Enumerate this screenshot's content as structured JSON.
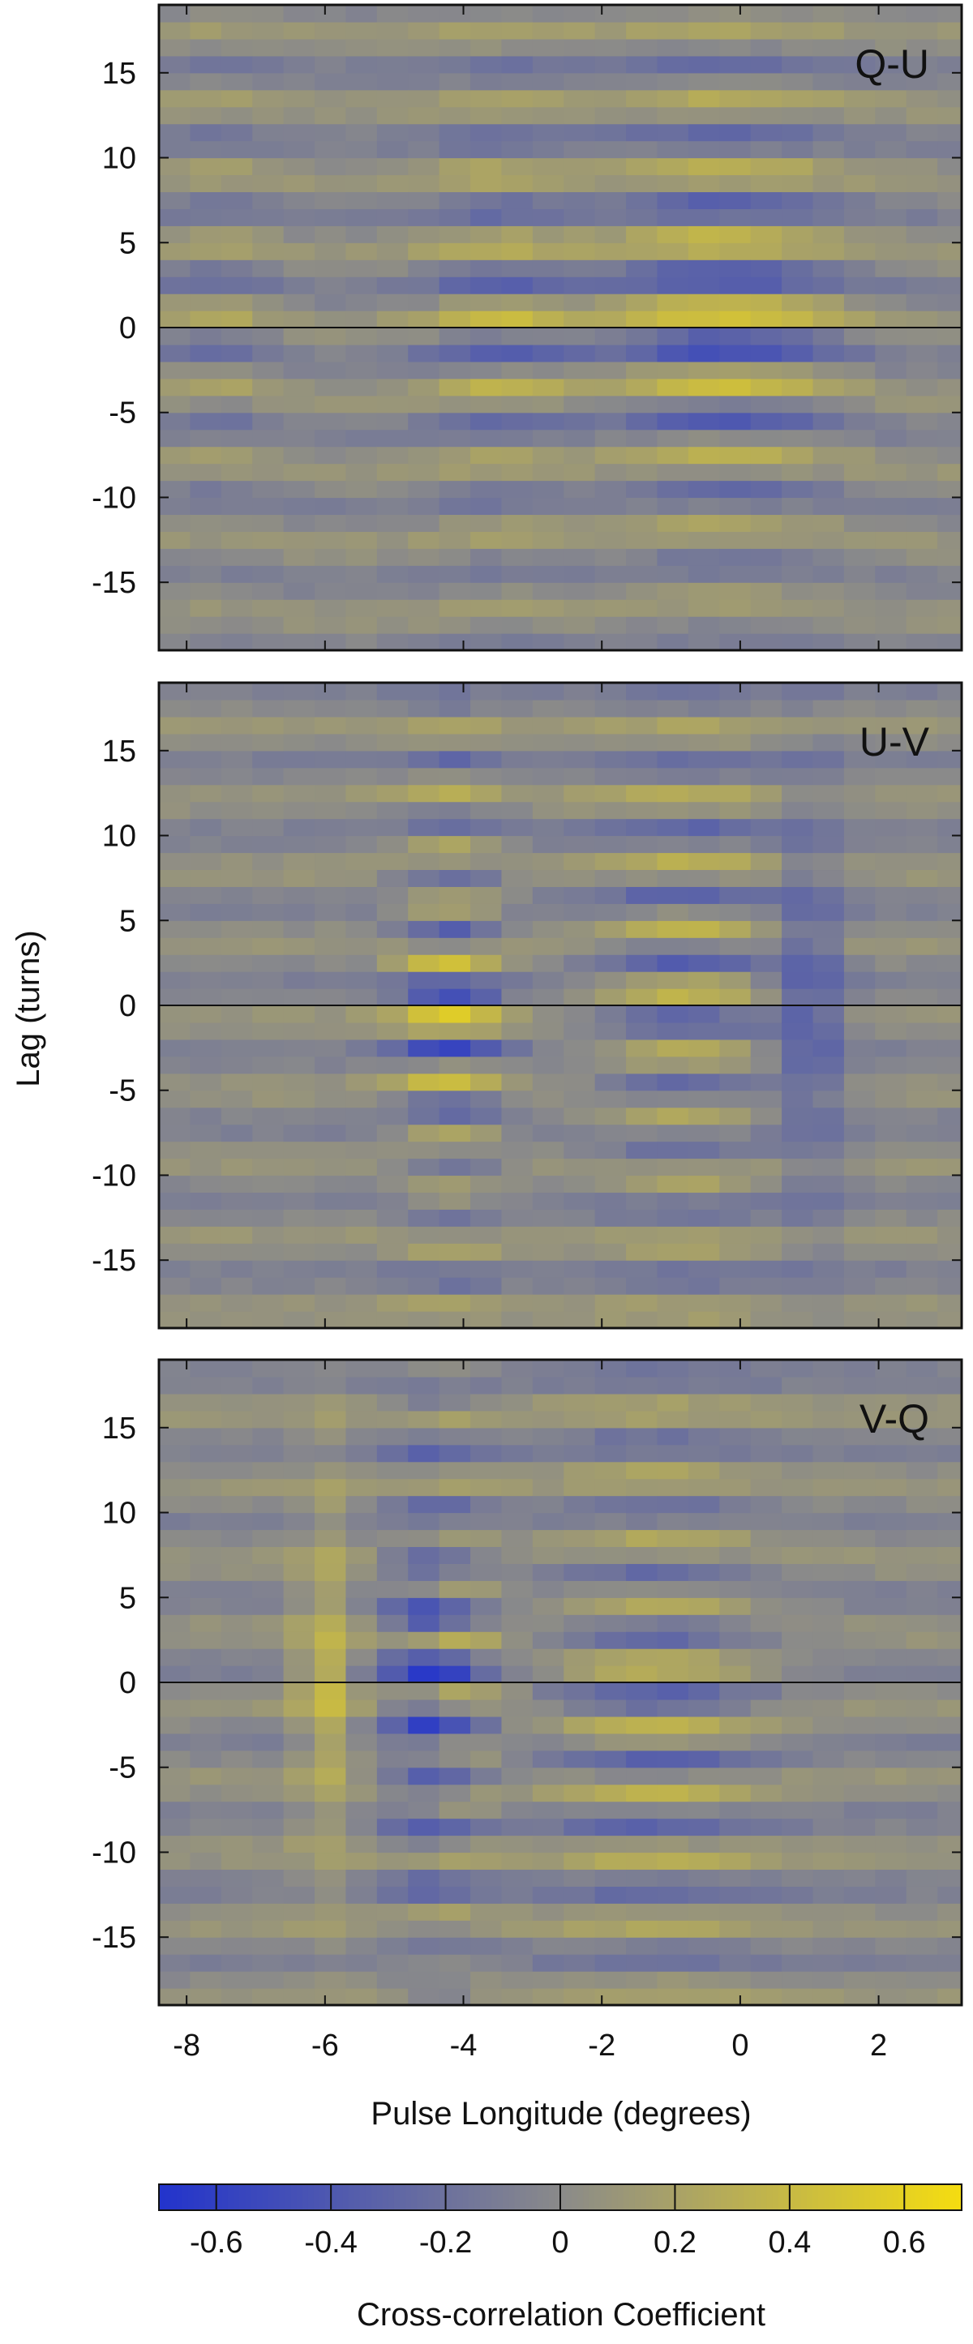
{
  "chart_data": {
    "type": "heatmap",
    "xlabel": "Pulse Longitude (degrees)",
    "ylabel": "Lag (turns)",
    "xlim": [
      -8.4,
      3.2
    ],
    "ylim": [
      -19,
      19
    ],
    "xticks": [
      "-8",
      "-6",
      "-4",
      "-2",
      "0",
      "2"
    ],
    "yticks": [
      "15",
      "10",
      "5",
      "0",
      "-5",
      "-10",
      "-15"
    ],
    "xtick_values": [
      -8,
      -6,
      -4,
      -2,
      0,
      2
    ],
    "ytick_values": [
      15,
      10,
      5,
      0,
      -5,
      -10,
      -15
    ],
    "grid": false,
    "lag_step": 1,
    "longitude_bin_width": 0.45,
    "reference_line_lag": 0,
    "colormap": {
      "negative_color": "#2233cc",
      "neutral_color": "#8a8a8a",
      "positive_color": "#f5dd10",
      "vmin": -0.7,
      "vmax": 0.7
    },
    "colorbar": {
      "label": "Cross-correlation Coefficient",
      "ticks": [
        "-0.6",
        "-0.4",
        "-0.2",
        "0",
        "0.2",
        "0.4",
        "0.6"
      ],
      "tick_values": [
        -0.6,
        -0.4,
        -0.2,
        0,
        0.2,
        0.4,
        0.6
      ],
      "range": [
        -0.7,
        0.7
      ]
    },
    "panels": [
      {
        "name": "Q-U",
        "features": [
          {
            "center": -0.2,
            "width": 1.7,
            "amplitude": 0.6,
            "period": 4.2,
            "phase": -1.571
          },
          {
            "center": -3.5,
            "width": 1.1,
            "amplitude": 0.38,
            "period": 4.2,
            "phase": -1.2
          },
          {
            "center": -7.6,
            "width": 0.9,
            "amplitude": 0.28,
            "period": 4.2,
            "phase": -1.571
          }
        ]
      },
      {
        "name": "U-V",
        "features": [
          {
            "center": -4.2,
            "width": 0.75,
            "amplitude": 0.6,
            "period": 3.4,
            "phase": 1.571
          },
          {
            "center": -0.8,
            "width": 1.3,
            "amplitude": 0.5,
            "period": 3.8,
            "phase": -1.571
          },
          {
            "center": 1.0,
            "width": 0.5,
            "amplitude": -0.35,
            "period": 100,
            "phase": 0
          }
        ]
      },
      {
        "name": "V-Q",
        "features": [
          {
            "center": -1.2,
            "width": 1.6,
            "amplitude": 0.5,
            "period": 3.8,
            "phase": -1.571
          },
          {
            "center": -4.3,
            "width": 0.8,
            "amplitude": 0.45,
            "period": 3.2,
            "phase": 1.571
          },
          {
            "center": -6.0,
            "width": 0.4,
            "amplitude": 0.35,
            "period": 100,
            "phase": 0
          },
          {
            "center": -4.6,
            "width": 0.55,
            "amplitude": -0.3,
            "period": 100,
            "phase": 0
          }
        ]
      }
    ]
  }
}
